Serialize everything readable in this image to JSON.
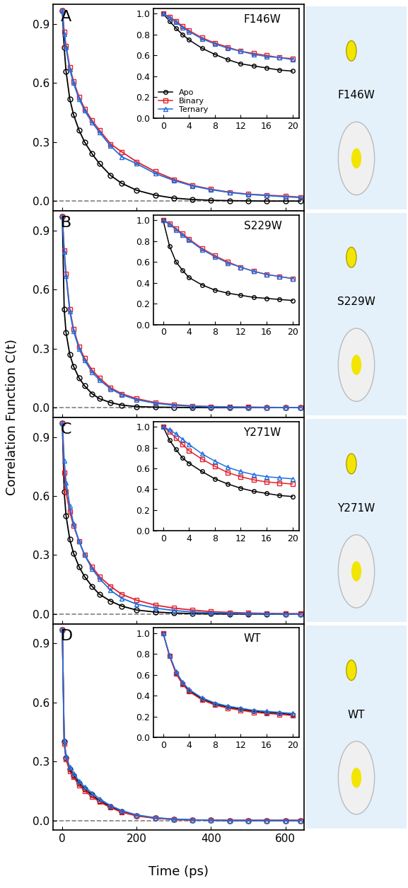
{
  "xlabel": "Time (ps)",
  "ylabel": "Correlation Function C(t)",
  "chart_data": [
    {
      "type": "line",
      "annotation": "A",
      "title": "F146W",
      "tick_labels": "y",
      "xlim": [
        -25,
        650
      ],
      "xticks": [
        0,
        200,
        400,
        600
      ],
      "ylim": [
        -0.05,
        1.0
      ],
      "yticks": [
        {
          "value": 0,
          "label": "0.0"
        },
        0.3,
        0.6,
        0.9
      ],
      "x": [
        0,
        5,
        10,
        20,
        30,
        45,
        60,
        80,
        100,
        130,
        160,
        200,
        250,
        300,
        350,
        400,
        450,
        500,
        550,
        600,
        640
      ],
      "series": [
        {
          "name": "Apo",
          "color": "#000000",
          "marker": "circle",
          "values": [
            0.97,
            0.78,
            0.66,
            0.52,
            0.44,
            0.36,
            0.3,
            0.24,
            0.19,
            0.13,
            0.09,
            0.055,
            0.03,
            0.015,
            0.008,
            0.004,
            0.002,
            0.001,
            0.0,
            0.0,
            0.0
          ]
        },
        {
          "name": "Binary",
          "color": "#e3202a",
          "marker": "square",
          "values": [
            0.97,
            0.86,
            0.79,
            0.68,
            0.61,
            0.53,
            0.47,
            0.41,
            0.36,
            0.29,
            0.25,
            0.2,
            0.15,
            0.11,
            0.08,
            0.06,
            0.045,
            0.035,
            0.03,
            0.025,
            0.02
          ]
        },
        {
          "name": "Ternary",
          "color": "#1f6fe0",
          "marker": "triangle",
          "values": [
            0.97,
            0.85,
            0.78,
            0.67,
            0.6,
            0.52,
            0.46,
            0.4,
            0.35,
            0.28,
            0.225,
            0.19,
            0.14,
            0.105,
            0.077,
            0.058,
            0.044,
            0.034,
            0.028,
            0.022,
            0.018
          ]
        }
      ],
      "inset": {
        "type": "line",
        "title": "F146W",
        "legend": "lower left",
        "xlim": [
          -1.5,
          21
        ],
        "xticks": [
          0,
          4,
          8,
          12,
          16,
          20
        ],
        "ylim": [
          0,
          1.05
        ],
        "yticks": [
          {
            "value": 0,
            "label": "0.0"
          },
          0.2,
          0.4,
          0.6,
          0.8,
          {
            "value": 1,
            "label": "1.0"
          }
        ],
        "x": [
          0,
          1,
          2,
          3,
          4,
          6,
          8,
          10,
          12,
          14,
          16,
          18,
          20
        ],
        "series": [
          {
            "name": "Apo",
            "color": "#000000",
            "marker": "circle",
            "values": [
              1.0,
              0.93,
              0.86,
              0.8,
              0.75,
              0.67,
              0.61,
              0.56,
              0.52,
              0.5,
              0.48,
              0.46,
              0.45
            ]
          },
          {
            "name": "Binary",
            "color": "#e3202a",
            "marker": "square",
            "values": [
              1.0,
              0.97,
              0.93,
              0.88,
              0.84,
              0.77,
              0.72,
              0.68,
              0.64,
              0.62,
              0.6,
              0.58,
              0.57
            ]
          },
          {
            "name": "Ternary",
            "color": "#1f6fe0",
            "marker": "triangle",
            "values": [
              1.0,
              0.96,
              0.92,
              0.87,
              0.83,
              0.76,
              0.71,
              0.67,
              0.64,
              0.61,
              0.59,
              0.58,
              0.56
            ]
          }
        ]
      }
    },
    {
      "type": "line",
      "annotation": "B",
      "title": "S229W",
      "tick_labels": "y",
      "xlim": [
        -25,
        650
      ],
      "xticks": [
        0,
        200,
        400,
        600
      ],
      "ylim": [
        -0.05,
        1.0
      ],
      "yticks": [
        {
          "value": 0,
          "label": "0.0"
        },
        0.3,
        0.6,
        0.9
      ],
      "x": [
        0,
        5,
        10,
        20,
        30,
        45,
        60,
        80,
        100,
        130,
        160,
        200,
        250,
        300,
        350,
        400,
        450,
        500,
        550,
        600,
        640
      ],
      "series": [
        {
          "name": "Apo",
          "color": "#000000",
          "marker": "circle",
          "values": [
            0.97,
            0.5,
            0.38,
            0.27,
            0.21,
            0.15,
            0.11,
            0.07,
            0.045,
            0.025,
            0.012,
            0.005,
            0.002,
            0.001,
            0.0,
            0.0,
            0.0,
            0.0,
            0.0,
            0.0,
            0.0
          ]
        },
        {
          "name": "Binary",
          "color": "#e3202a",
          "marker": "square",
          "values": [
            0.97,
            0.8,
            0.68,
            0.5,
            0.4,
            0.31,
            0.25,
            0.19,
            0.15,
            0.1,
            0.07,
            0.045,
            0.025,
            0.015,
            0.008,
            0.005,
            0.003,
            0.002,
            0.001,
            0.0,
            0.0
          ]
        },
        {
          "name": "Ternary",
          "color": "#1f6fe0",
          "marker": "triangle",
          "values": [
            0.97,
            0.79,
            0.67,
            0.49,
            0.39,
            0.3,
            0.24,
            0.18,
            0.14,
            0.095,
            0.065,
            0.04,
            0.022,
            0.012,
            0.007,
            0.004,
            0.002,
            0.001,
            0.0,
            0.0,
            0.0
          ]
        }
      ],
      "inset": {
        "type": "line",
        "title": "S229W",
        "xlim": [
          -1.5,
          21
        ],
        "xticks": [
          0,
          4,
          8,
          12,
          16,
          20
        ],
        "ylim": [
          0,
          1.05
        ],
        "yticks": [
          {
            "value": 0,
            "label": "0.0"
          },
          0.2,
          0.4,
          0.6,
          0.8,
          {
            "value": 1,
            "label": "1.0"
          }
        ],
        "x": [
          0,
          1,
          2,
          3,
          4,
          6,
          8,
          10,
          12,
          14,
          16,
          18,
          20
        ],
        "series": [
          {
            "name": "Apo",
            "color": "#000000",
            "marker": "circle",
            "values": [
              1.0,
              0.75,
              0.6,
              0.52,
              0.45,
              0.38,
              0.33,
              0.3,
              0.28,
              0.26,
              0.25,
              0.24,
              0.23
            ]
          },
          {
            "name": "Binary",
            "color": "#e3202a",
            "marker": "square",
            "values": [
              1.0,
              0.97,
              0.92,
              0.87,
              0.82,
              0.73,
              0.66,
              0.6,
              0.55,
              0.51,
              0.48,
              0.46,
              0.44
            ]
          },
          {
            "name": "Ternary",
            "color": "#1f6fe0",
            "marker": "triangle",
            "values": [
              1.0,
              0.96,
              0.91,
              0.86,
              0.81,
              0.72,
              0.65,
              0.59,
              0.55,
              0.51,
              0.48,
              0.46,
              0.44
            ]
          }
        ]
      }
    },
    {
      "type": "line",
      "annotation": "C",
      "title": "Y271W",
      "tick_labels": "y",
      "xlim": [
        -25,
        650
      ],
      "xticks": [
        0,
        200,
        400,
        600
      ],
      "ylim": [
        -0.05,
        1.0
      ],
      "yticks": [
        {
          "value": 0,
          "label": "0.0"
        },
        0.3,
        0.6,
        0.9
      ],
      "x": [
        0,
        5,
        10,
        20,
        30,
        45,
        60,
        80,
        100,
        130,
        160,
        200,
        250,
        300,
        350,
        400,
        450,
        500,
        550,
        600,
        640
      ],
      "series": [
        {
          "name": "Apo",
          "color": "#000000",
          "marker": "circle",
          "values": [
            0.97,
            0.62,
            0.5,
            0.38,
            0.31,
            0.24,
            0.19,
            0.14,
            0.1,
            0.065,
            0.04,
            0.02,
            0.01,
            0.005,
            0.002,
            0.001,
            0.0,
            0.0,
            0.0,
            0.0,
            0.0
          ]
        },
        {
          "name": "Binary",
          "color": "#e3202a",
          "marker": "square",
          "values": [
            0.97,
            0.72,
            0.62,
            0.52,
            0.45,
            0.37,
            0.3,
            0.24,
            0.19,
            0.14,
            0.1,
            0.07,
            0.045,
            0.03,
            0.02,
            0.012,
            0.008,
            0.005,
            0.003,
            0.002,
            0.001
          ]
        },
        {
          "name": "Ternary",
          "color": "#1f6fe0",
          "marker": "triangle",
          "values": [
            0.97,
            0.78,
            0.67,
            0.55,
            0.46,
            0.37,
            0.3,
            0.23,
            0.18,
            0.12,
            0.08,
            0.05,
            0.03,
            0.018,
            0.01,
            0.006,
            0.004,
            0.002,
            0.001,
            0.0,
            0.0
          ]
        }
      ],
      "inset": {
        "type": "line",
        "title": "Y271W",
        "xlim": [
          -1.5,
          21
        ],
        "xticks": [
          0,
          4,
          8,
          12,
          16,
          20
        ],
        "ylim": [
          0,
          1.05
        ],
        "yticks": [
          {
            "value": 0,
            "label": "0.0"
          },
          0.2,
          0.4,
          0.6,
          0.8,
          {
            "value": 1,
            "label": "1.0"
          }
        ],
        "x": [
          0,
          1,
          2,
          3,
          4,
          6,
          8,
          10,
          12,
          14,
          16,
          18,
          20
        ],
        "series": [
          {
            "name": "Apo",
            "color": "#000000",
            "marker": "circle",
            "values": [
              1.0,
              0.87,
              0.78,
              0.7,
              0.65,
              0.57,
              0.5,
              0.45,
              0.41,
              0.38,
              0.36,
              0.34,
              0.33
            ]
          },
          {
            "name": "Binary",
            "color": "#e3202a",
            "marker": "square",
            "values": [
              1.0,
              0.95,
              0.89,
              0.83,
              0.77,
              0.69,
              0.62,
              0.56,
              0.52,
              0.49,
              0.47,
              0.46,
              0.45
            ]
          },
          {
            "name": "Ternary",
            "color": "#1f6fe0",
            "marker": "triangle",
            "values": [
              1.0,
              0.97,
              0.93,
              0.88,
              0.83,
              0.74,
              0.67,
              0.61,
              0.57,
              0.54,
              0.52,
              0.51,
              0.5
            ]
          }
        ]
      }
    },
    {
      "type": "line",
      "annotation": "D",
      "title": "WT",
      "xlim": [
        -25,
        650
      ],
      "xticks": [
        0,
        200,
        400,
        600
      ],
      "ylim": [
        -0.05,
        1.0
      ],
      "yticks": [
        {
          "value": 0,
          "label": "0.0"
        },
        0.3,
        0.6,
        0.9
      ],
      "x": [
        0,
        5,
        10,
        20,
        30,
        45,
        60,
        80,
        100,
        130,
        160,
        200,
        250,
        300,
        350,
        400,
        450,
        500,
        550,
        600,
        640
      ],
      "series": [
        {
          "name": "Apo",
          "color": "#000000",
          "marker": "circle",
          "values": [
            0.97,
            0.4,
            0.32,
            0.26,
            0.23,
            0.19,
            0.16,
            0.13,
            0.1,
            0.07,
            0.045,
            0.025,
            0.012,
            0.006,
            0.003,
            0.001,
            0.0,
            0.0,
            0.0,
            0.0,
            0.0
          ]
        },
        {
          "name": "Binary",
          "color": "#e3202a",
          "marker": "square",
          "values": [
            0.97,
            0.39,
            0.31,
            0.25,
            0.22,
            0.18,
            0.15,
            0.12,
            0.095,
            0.065,
            0.042,
            0.023,
            0.011,
            0.005,
            0.002,
            0.001,
            0.0,
            0.0,
            0.0,
            0.0,
            0.0
          ]
        },
        {
          "name": "Ternary",
          "color": "#1f6fe0",
          "marker": "triangle",
          "values": [
            0.97,
            0.41,
            0.33,
            0.27,
            0.24,
            0.2,
            0.17,
            0.14,
            0.11,
            0.075,
            0.05,
            0.028,
            0.014,
            0.007,
            0.003,
            0.001,
            0.0,
            0.0,
            0.0,
            0.0,
            0.0
          ]
        }
      ],
      "inset": {
        "type": "line",
        "title": "WT",
        "xlim": [
          -1.5,
          21
        ],
        "xticks": [
          0,
          4,
          8,
          12,
          16,
          20
        ],
        "ylim": [
          0,
          1.05
        ],
        "yticks": [
          {
            "value": 0,
            "label": "0.0"
          },
          0.2,
          0.4,
          0.6,
          0.8,
          {
            "value": 1,
            "label": "1.0"
          }
        ],
        "x": [
          0,
          1,
          2,
          3,
          4,
          6,
          8,
          10,
          12,
          14,
          16,
          18,
          20
        ],
        "series": [
          {
            "name": "Apo",
            "color": "#000000",
            "marker": "circle",
            "values": [
              1.0,
              0.78,
              0.62,
              0.52,
              0.45,
              0.37,
              0.32,
              0.29,
              0.27,
              0.25,
              0.24,
              0.23,
              0.22
            ]
          },
          {
            "name": "Binary",
            "color": "#e3202a",
            "marker": "square",
            "values": [
              1.0,
              0.78,
              0.61,
              0.51,
              0.44,
              0.36,
              0.31,
              0.28,
              0.26,
              0.24,
              0.23,
              0.22,
              0.21
            ]
          },
          {
            "name": "Ternary",
            "color": "#1f6fe0",
            "marker": "triangle",
            "values": [
              1.0,
              0.79,
              0.63,
              0.53,
              0.46,
              0.38,
              0.33,
              0.3,
              0.28,
              0.26,
              0.25,
              0.24,
              0.23
            ]
          }
        ]
      }
    }
  ]
}
